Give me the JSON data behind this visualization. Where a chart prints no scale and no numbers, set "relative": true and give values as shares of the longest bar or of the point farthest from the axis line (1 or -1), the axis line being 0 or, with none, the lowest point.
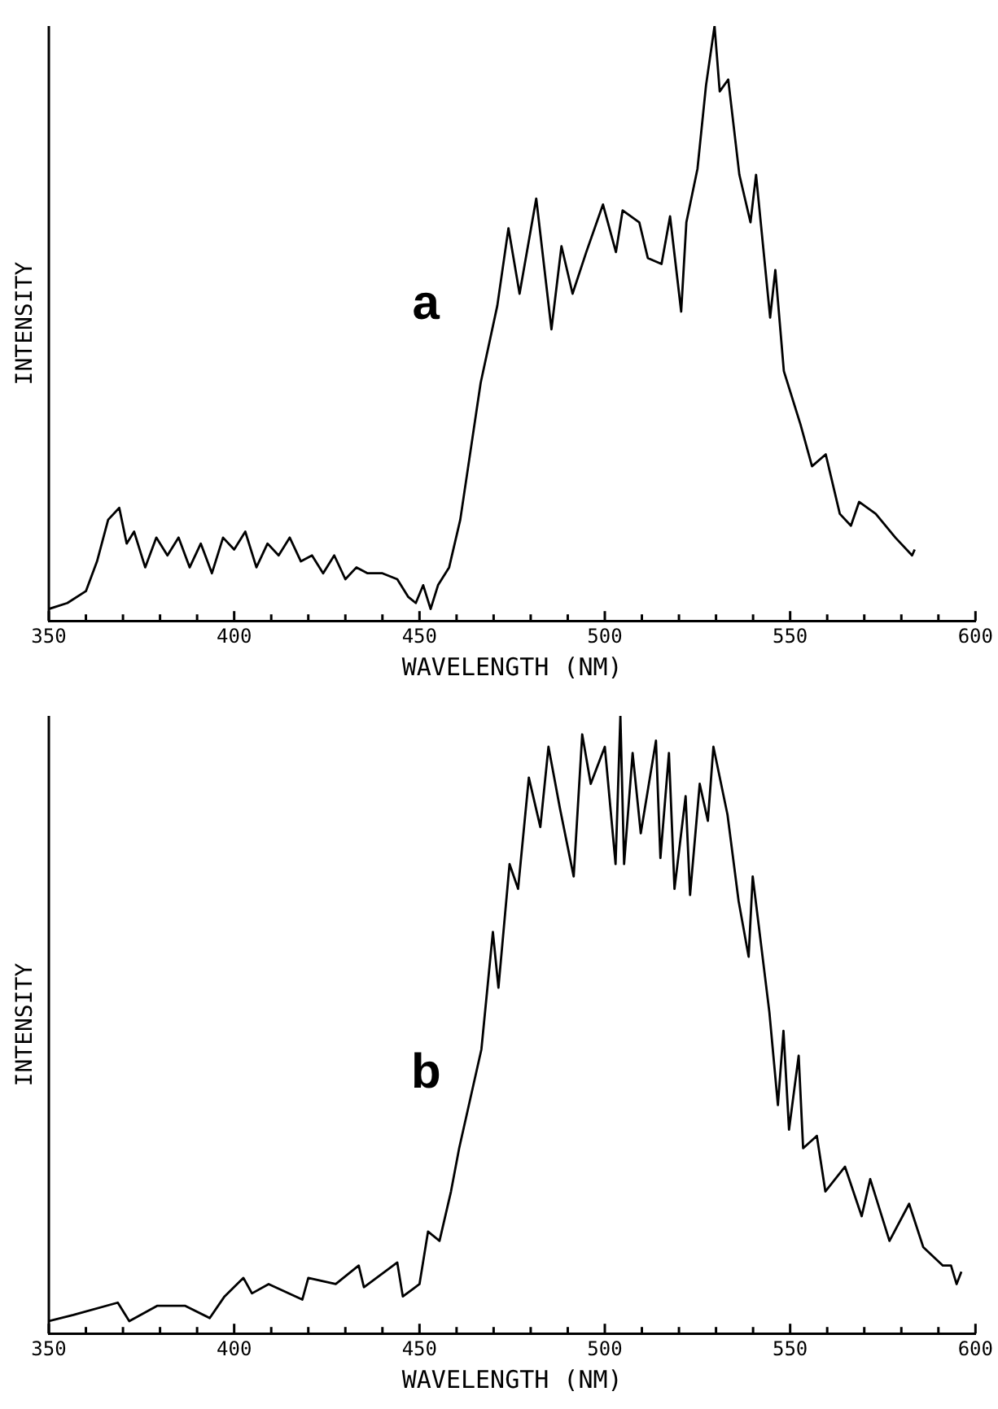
{
  "chart_data": [
    {
      "type": "line",
      "relative": true,
      "xlabel": "WAVELENGTH (NM)",
      "ylabel": "INTENSITY",
      "annotations": [
        "a"
      ],
      "xlim": [
        350,
        600
      ],
      "xticks": [
        350,
        {
          "value": 360,
          "label": null
        },
        {
          "value": 370,
          "label": null
        },
        {
          "value": 380,
          "label": null
        },
        {
          "value": 390,
          "label": null
        },
        400,
        {
          "value": 410,
          "label": null
        },
        {
          "value": 420,
          "label": null
        },
        {
          "value": 430,
          "label": null
        },
        {
          "value": 440,
          "label": null
        },
        450,
        {
          "value": 460,
          "label": null
        },
        {
          "value": 470,
          "label": null
        },
        {
          "value": 480,
          "label": null
        },
        {
          "value": 490,
          "label": null
        },
        500,
        {
          "value": 510,
          "label": null
        },
        {
          "value": 520,
          "label": null
        },
        {
          "value": 530,
          "label": null
        },
        {
          "value": 540,
          "label": null
        },
        550,
        {
          "value": 560,
          "label": null
        },
        {
          "value": 570,
          "label": null
        },
        {
          "value": 580,
          "label": null
        },
        {
          "value": 590,
          "label": null
        },
        600
      ],
      "grid": false,
      "legend": false,
      "marker": "none",
      "line_style": "solid",
      "series": [
        {
          "color": "#000000",
          "x": [
            350,
            355,
            360,
            363,
            366,
            369,
            371,
            373,
            376,
            379,
            382,
            385,
            388,
            391,
            394,
            397,
            400,
            403,
            406,
            409,
            412,
            415,
            418,
            421,
            424,
            427,
            430,
            433,
            436,
            440,
            444,
            447,
            449,
            451,
            453,
            455,
            458,
            461,
            466.5,
            471,
            474,
            477,
            481.5,
            485.6,
            488.3,
            491.3,
            495,
            499.5,
            503,
            504.8,
            509.3,
            511.6,
            515.3,
            517.6,
            520.6,
            522,
            525,
            527.3,
            529.6,
            531,
            533.3,
            536.3,
            539.3,
            540.8,
            544.6,
            546,
            548.3,
            552.8,
            555.9,
            559.6,
            563.4,
            566.4,
            568.6,
            573.1,
            578.4,
            582.9,
            583.6
          ],
          "values": [
            0.02,
            0.03,
            0.05,
            0.1,
            0.17,
            0.19,
            0.13,
            0.15,
            0.09,
            0.14,
            0.11,
            0.14,
            0.09,
            0.13,
            0.08,
            0.14,
            0.12,
            0.15,
            0.09,
            0.13,
            0.11,
            0.14,
            0.1,
            0.11,
            0.08,
            0.11,
            0.07,
            0.09,
            0.08,
            0.08,
            0.07,
            0.04,
            0.03,
            0.06,
            0.02,
            0.06,
            0.09,
            0.17,
            0.4,
            0.53,
            0.66,
            0.55,
            0.71,
            0.49,
            0.63,
            0.55,
            0.62,
            0.7,
            0.62,
            0.69,
            0.67,
            0.61,
            0.6,
            0.68,
            0.52,
            0.67,
            0.76,
            0.9,
            1,
            0.89,
            0.91,
            0.75,
            0.67,
            0.75,
            0.51,
            0.59,
            0.42,
            0.33,
            0.26,
            0.28,
            0.18,
            0.16,
            0.2,
            0.18,
            0.14,
            0.11,
            0.12
          ]
        }
      ]
    },
    {
      "type": "line",
      "relative": true,
      "xlabel": "WAVELENGTH (NM)",
      "ylabel": "INTENSITY",
      "annotations": [
        "b"
      ],
      "xlim": [
        350,
        600
      ],
      "xticks": [
        350,
        {
          "value": 360,
          "label": null
        },
        {
          "value": 370,
          "label": null
        },
        {
          "value": 380,
          "label": null
        },
        {
          "value": 390,
          "label": null
        },
        400,
        {
          "value": 410,
          "label": null
        },
        {
          "value": 420,
          "label": null
        },
        {
          "value": 430,
          "label": null
        },
        {
          "value": 440,
          "label": null
        },
        450,
        {
          "value": 460,
          "label": null
        },
        {
          "value": 470,
          "label": null
        },
        {
          "value": 480,
          "label": null
        },
        {
          "value": 490,
          "label": null
        },
        500,
        {
          "value": 510,
          "label": null
        },
        {
          "value": 520,
          "label": null
        },
        {
          "value": 530,
          "label": null
        },
        {
          "value": 540,
          "label": null
        },
        550,
        {
          "value": 560,
          "label": null
        },
        {
          "value": 570,
          "label": null
        },
        {
          "value": 580,
          "label": null
        },
        {
          "value": 590,
          "label": null
        },
        600
      ],
      "grid": false,
      "legend": false,
      "marker": "none",
      "line_style": "solid",
      "series": [
        {
          "color": "#000000",
          "x": [
            350,
            356.6,
            368.6,
            371.7,
            379.3,
            386.7,
            393.4,
            397.4,
            402.5,
            404.8,
            409.3,
            418.4,
            420,
            427.4,
            433.6,
            435,
            444,
            445.5,
            450,
            452.3,
            455.4,
            458.5,
            460.7,
            463.7,
            466.7,
            469.8,
            471.3,
            474.3,
            476.6,
            479.5,
            482.6,
            484.8,
            487.9,
            491.6,
            493.9,
            496.2,
            500,
            502.9,
            504.2,
            505.2,
            507.5,
            509.7,
            513.8,
            515,
            517.3,
            518.8,
            521.8,
            523,
            525.6,
            527.8,
            529.3,
            533.1,
            536.1,
            538.8,
            539.9,
            544.4,
            546.7,
            548.2,
            549.7,
            552.3,
            553.5,
            557.2,
            559.5,
            564.8,
            569.3,
            571.6,
            576.8,
            582.1,
            585.9,
            591.2,
            593.4,
            594.9,
            596.2
          ],
          "values": [
            0.02,
            0.03,
            0.05,
            0.02,
            0.045,
            0.045,
            0.025,
            0.06,
            0.09,
            0.065,
            0.08,
            0.055,
            0.09,
            0.08,
            0.11,
            0.075,
            0.115,
            0.06,
            0.08,
            0.165,
            0.15,
            0.23,
            0.3,
            0.38,
            0.46,
            0.65,
            0.56,
            0.76,
            0.72,
            0.9,
            0.82,
            0.95,
            0.85,
            0.74,
            0.97,
            0.89,
            0.95,
            0.76,
            1,
            0.76,
            0.94,
            0.81,
            0.96,
            0.77,
            0.94,
            0.72,
            0.87,
            0.71,
            0.89,
            0.83,
            0.95,
            0.84,
            0.7,
            0.61,
            0.74,
            0.52,
            0.37,
            0.49,
            0.33,
            0.45,
            0.3,
            0.32,
            0.23,
            0.27,
            0.19,
            0.25,
            0.15,
            0.21,
            0.14,
            0.11,
            0.11,
            0.08,
            0.1
          ]
        }
      ]
    }
  ]
}
